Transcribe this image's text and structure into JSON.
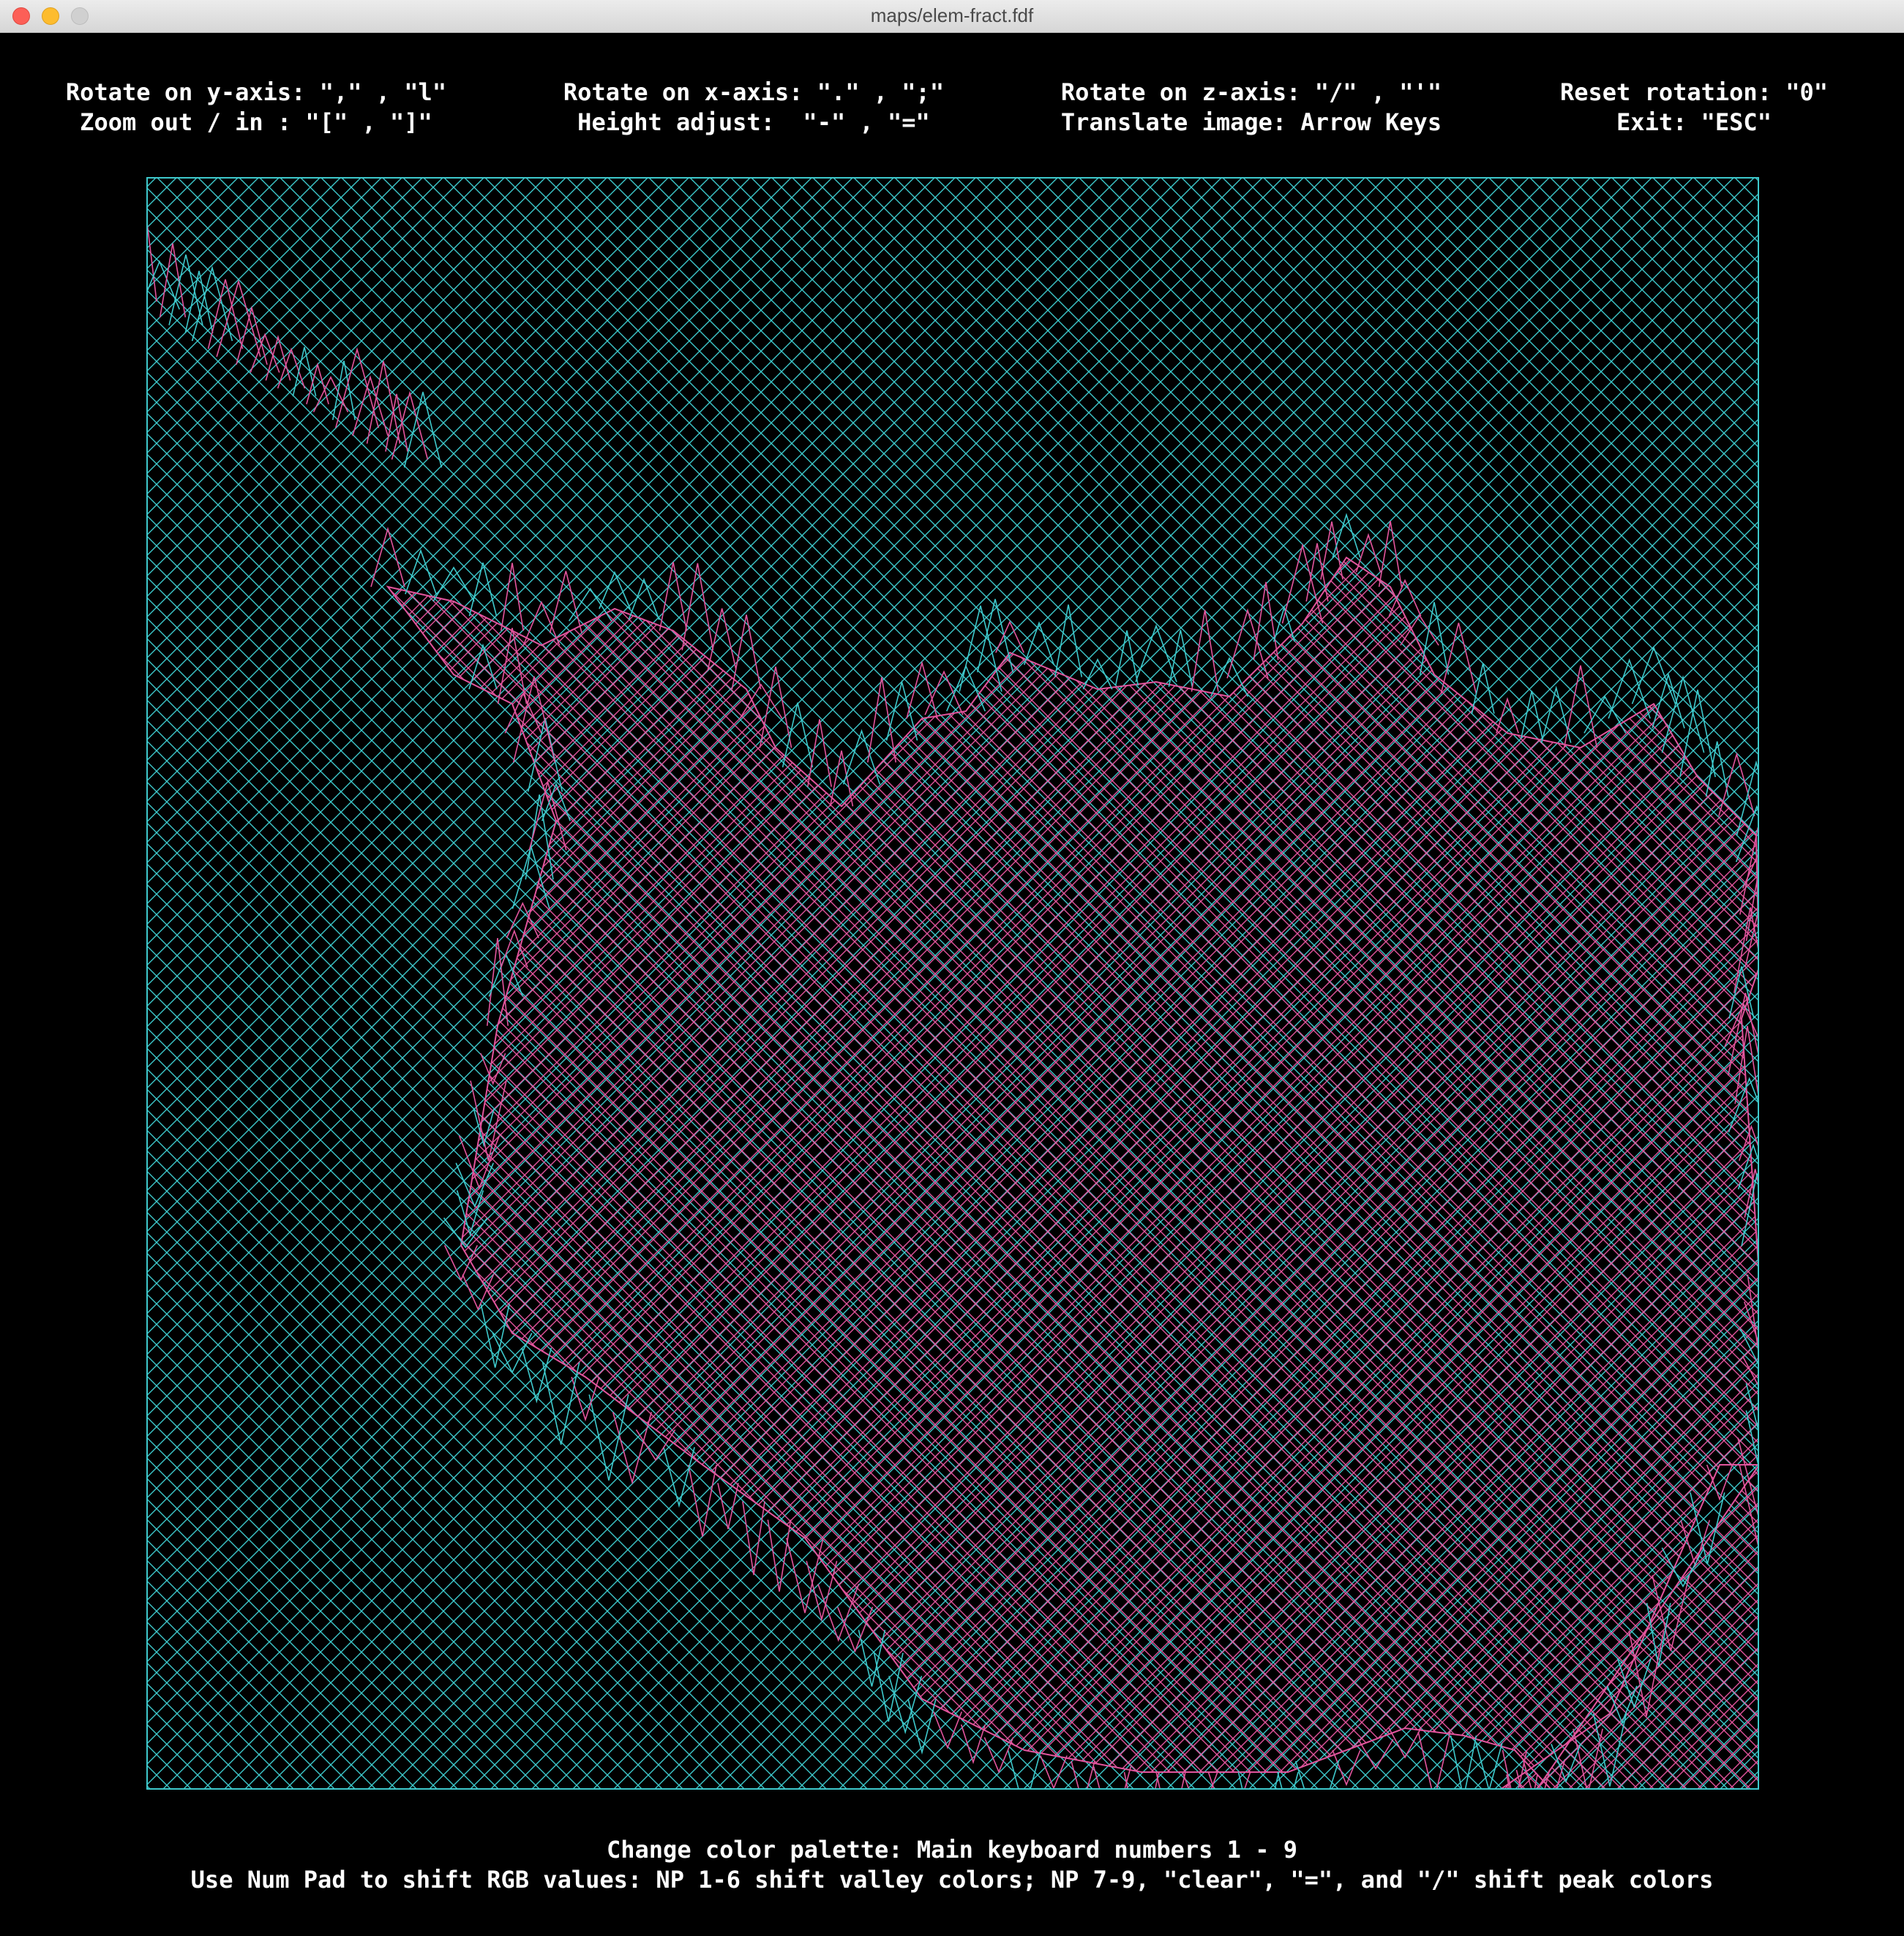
{
  "window": {
    "title": "maps/elem-fract.fdf"
  },
  "help": {
    "rotate_y": "Rotate on y-axis: \",\" , \"l\"",
    "zoom": "Zoom out / in : \"[\" , \"]\"",
    "rotate_x": "Rotate on x-axis: \".\" , \";\"",
    "height": "Height adjust:  \"-\" , \"=\"",
    "rotate_z": "Rotate on z-axis: \"/\" , \"'\"",
    "translate": "Translate image: Arrow Keys",
    "reset": "Reset rotation: \"0\"",
    "exit": "Exit: \"ESC\"",
    "palette": "Change color palette: Main keyboard numbers 1 - 9",
    "numpad": "Use Num Pad to shift RGB values: NP 1-6 shift valley colors; NP 7-9, \"clear\", \"=\", and \"/\" shift peak colors"
  },
  "colors": {
    "background": "#000000",
    "valley": "#3ec9cc",
    "peak": "#e2559d",
    "text": "#ffffff"
  }
}
